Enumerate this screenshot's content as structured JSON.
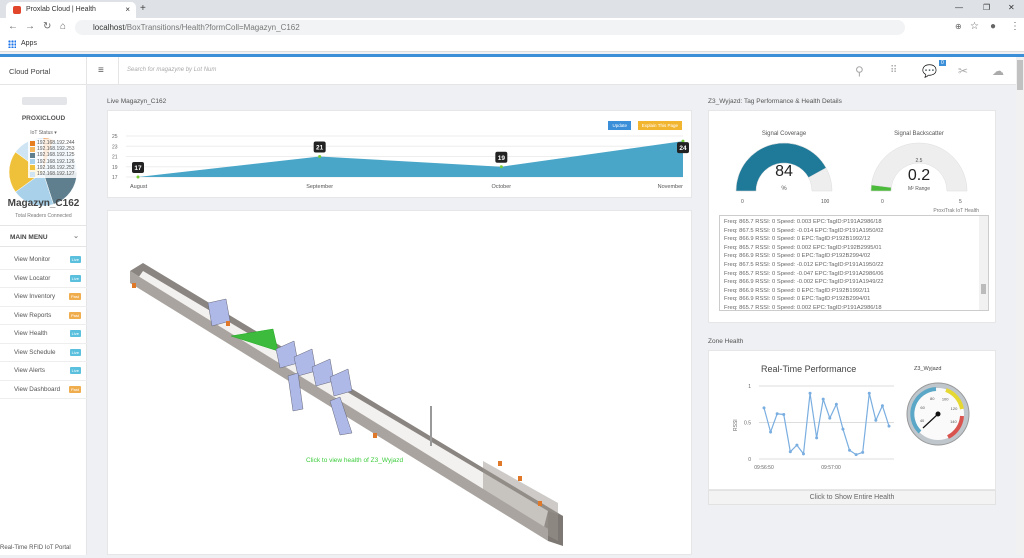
{
  "browser": {
    "tab_title": "Proxlab Cloud | Health",
    "url_host": "localhost",
    "url_path": "/BoxTransitions/Health?formColl=Magazyn_C162",
    "bookmark": "Apps"
  },
  "header": {
    "brand": "Cloud Portal",
    "search_placeholder": "Search for magazyne by Lot Num",
    "notification_count": "0"
  },
  "sidebar": {
    "logo_text": "PROXICLOUD",
    "iot_status": "IoT Status ▾",
    "readers": [
      {
        "ip": "192.168.192.244",
        "color": "#e67e22"
      },
      {
        "ip": "192.168.192.253",
        "color": "#f4b860"
      },
      {
        "ip": "192.168.192.125",
        "color": "#5f7f8f"
      },
      {
        "ip": "192.168.192.126",
        "color": "#a9d2ea"
      },
      {
        "ip": "192.168.192.252",
        "color": "#efc13b"
      },
      {
        "ip": "192.168.192.127",
        "color": "#cfe5f3"
      }
    ],
    "warehouse": "Magazyn_C162",
    "readers_caption": "Total Readers Connected",
    "menu_title": "MAIN MENU",
    "items": [
      {
        "label": "View Monitor",
        "badge": "Live",
        "badge_color": "#5bc0de"
      },
      {
        "label": "View Locator",
        "badge": "Live",
        "badge_color": "#5bc0de"
      },
      {
        "label": "View Inventory",
        "badge": "Past",
        "badge_color": "#f0ad4e"
      },
      {
        "label": "View Reports",
        "badge": "Past",
        "badge_color": "#f0ad4e"
      },
      {
        "label": "View Health",
        "badge": "Live",
        "badge_color": "#5bc0de"
      },
      {
        "label": "View Schedule",
        "badge": "Live",
        "badge_color": "#5bc0de"
      },
      {
        "label": "View Alerts",
        "badge": "Live",
        "badge_color": "#5bc0de"
      },
      {
        "label": "View Dashboard",
        "badge": "Past",
        "badge_color": "#f0ad4e"
      }
    ],
    "footer": "Real-Time RFID IoT Portal"
  },
  "live": {
    "title": "Live Magazyn_C162",
    "update_label": "Update",
    "explain_label": "Explain This Page"
  },
  "chart_data": [
    {
      "type": "area",
      "categories": [
        "August",
        "September",
        "October",
        "November"
      ],
      "values": [
        17,
        21,
        19,
        24
      ],
      "yticks": [
        17,
        19,
        21,
        23,
        25
      ],
      "ylim": [
        17,
        25
      ],
      "color": "#4aa6c8"
    },
    {
      "type": "line",
      "title": "Real-Time Performance",
      "ylabel": "RSSI",
      "ylim": [
        0,
        1
      ],
      "yticks": [
        0,
        0.5,
        1
      ],
      "xticks": [
        "09:56:50",
        "09:57:00"
      ],
      "values": [
        0.7,
        0.37,
        0.62,
        0.61,
        0.1,
        0.19,
        0.07,
        0.9,
        0.29,
        0.82,
        0.56,
        0.75,
        0.41,
        0.12,
        0.06,
        0.09,
        0.9,
        0.53,
        0.73,
        0.45
      ],
      "color": "#7aaee0"
    }
  ],
  "floor": {
    "caption": "Click to view health of Z3_Wyjazd"
  },
  "health": {
    "title": "Z3_Wyjazd: Tag Performance & Health Details",
    "coverage": {
      "label": "Signal Coverage",
      "value": "84",
      "unit": "%",
      "min": "0",
      "max": "100",
      "fraction": 0.84,
      "color": "#1f7a99"
    },
    "backscatter": {
      "label": "Signal Backscatter",
      "value": "0.2",
      "unit": "M² Range",
      "min": "0",
      "max": "5",
      "mid": "2.5",
      "fraction": 0.04,
      "color": "#4cbb3c"
    },
    "credit": "ProxiTrak IoT Health",
    "log": [
      "Freq: 865.7 RSSI: 0 Speed: 0.003 EPC:TagID:P191A2986/18",
      "Freq: 867.5 RSSI: 0 Speed: -0.014 EPC:TagID:P191A1950/02",
      "Freq: 866.9 RSSI: 0 Speed: 0 EPC:TagID:P192B1992/12",
      "Freq: 865.7 RSSI: 0 Speed: 0.002 EPC:TagID:P192B2995/01",
      "Freq: 866.9 RSSI: 0 Speed: 0 EPC:TagID:P192B2994/02",
      "Freq: 867.5 RSSI: 0 Speed: -0.012 EPC:TagID:P191A1950/22",
      "Freq: 865.7 RSSI: 0 Speed: -0.047 EPC:TagID:P191A2986/06",
      "Freq: 866.9 RSSI: 0 Speed: -0.002 EPC:TagID:P191A1949/22",
      "Freq: 866.9 RSSI: 0 Speed: 0 EPC:TagID:P192B1992/11",
      "Freq: 866.9 RSSI: 0 Speed: 0 EPC:TagID:P192B2994/01",
      "Freq: 865.7 RSSI: 0 Speed: 0.002 EPC:TagID:P191A2986/18"
    ]
  },
  "zone": {
    "title": "Zone Health",
    "gauge_title": "Z3_Wyjazd",
    "gauge_labels": [
      "40",
      "60",
      "80",
      "100",
      "120",
      "140"
    ],
    "show_all": "Click to Show Entire Health"
  }
}
